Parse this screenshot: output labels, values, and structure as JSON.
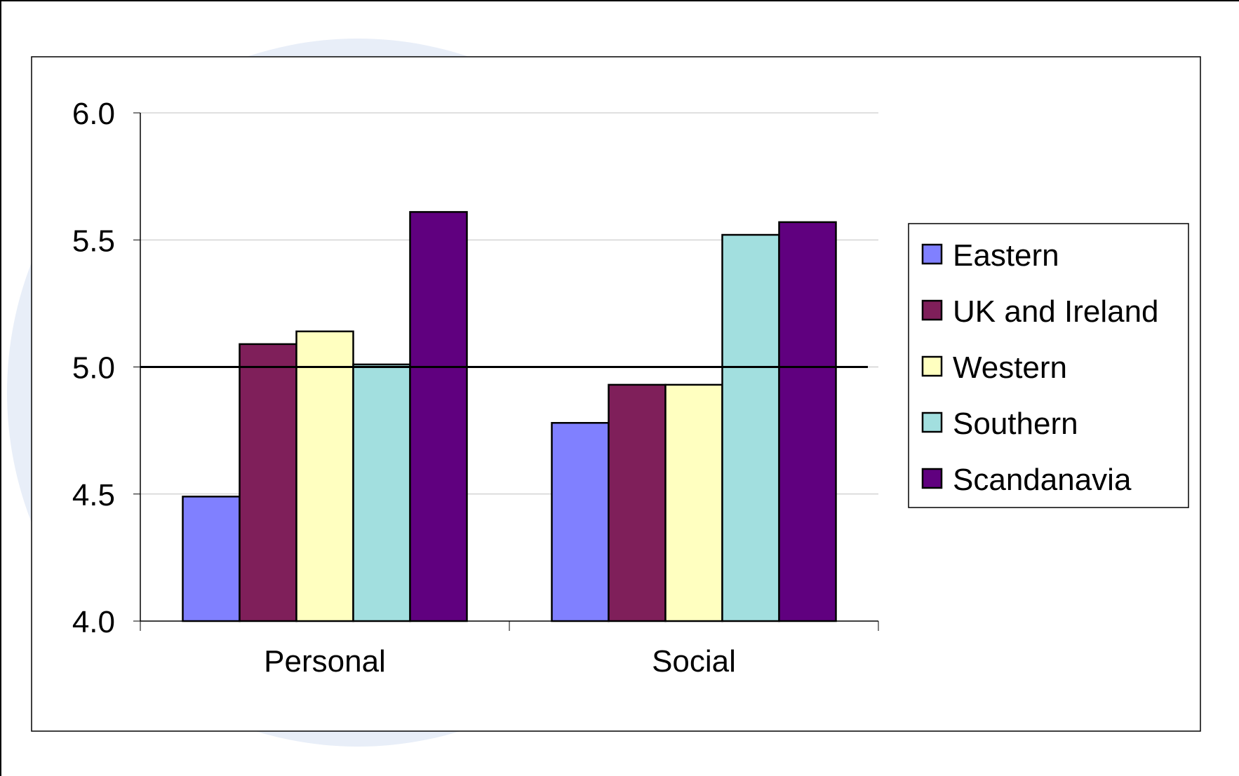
{
  "chart_data": {
    "type": "bar",
    "title": "",
    "xlabel": "",
    "ylabel": "",
    "categories": [
      "Personal",
      "Social"
    ],
    "ylim": [
      4.0,
      6.0
    ],
    "yticks": [
      "4.0",
      "4.5",
      "5.0",
      "5.5",
      "6.0"
    ],
    "reference_line": 5.0,
    "grid": true,
    "legend_position": "right",
    "series": [
      {
        "name": "Eastern",
        "color": "#8080FF",
        "values": [
          4.49,
          4.78
        ]
      },
      {
        "name": "UK and Ireland",
        "color": "#7F1F5A",
        "values": [
          5.09,
          4.93
        ]
      },
      {
        "name": "Western",
        "color": "#FFFFC0",
        "values": [
          5.14,
          4.93
        ]
      },
      {
        "name": "Southern",
        "color": "#A2DFDF",
        "values": [
          5.01,
          5.52
        ]
      },
      {
        "name": "Scandanavia",
        "color": "#60007F",
        "values": [
          5.61,
          5.57
        ]
      }
    ]
  }
}
